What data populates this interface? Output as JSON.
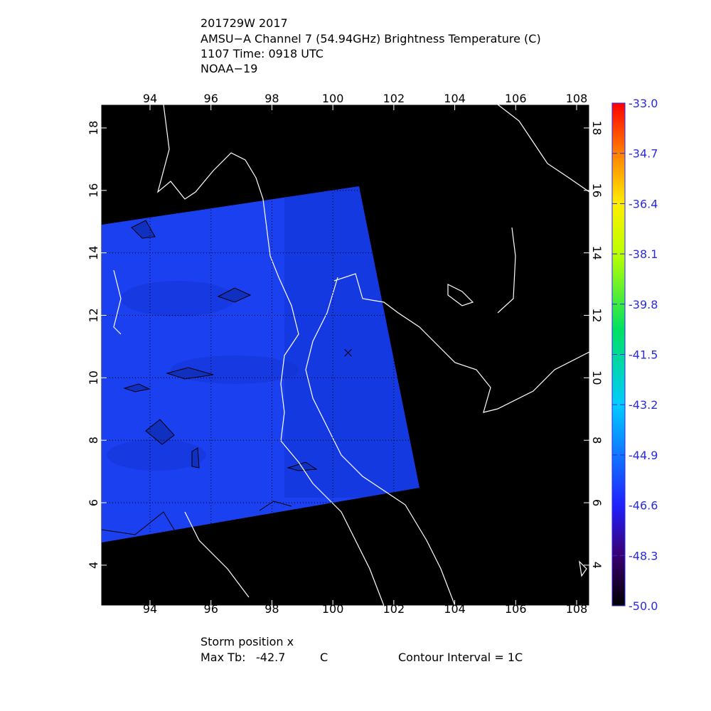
{
  "header": {
    "lines": [
      "201729W 2017",
      "AMSU−A Channel 7 (54.94GHz) Brightness Temperature (C)",
      "1107 Time: 0918 UTC",
      "NOAA−19"
    ]
  },
  "map": {
    "xlim": [
      92.39,
      108.42
    ],
    "ylim": [
      2.7,
      18.75
    ],
    "xticks": [
      94,
      96,
      98,
      100,
      102,
      104,
      106,
      108
    ],
    "yticks": [
      4,
      6,
      8,
      10,
      12,
      14,
      16,
      18
    ],
    "storm_position": {
      "lon": 100.5,
      "lat": 10.8
    }
  },
  "colorbar": {
    "lim": [
      -50.0,
      -33.0
    ],
    "ticks": [
      {
        "value": -33.0,
        "label": "-33.0"
      },
      {
        "value": -34.7,
        "label": "-34.7"
      },
      {
        "value": -36.4,
        "label": "-36.4"
      },
      {
        "value": -38.1,
        "label": "-38.1"
      },
      {
        "value": -39.8,
        "label": "-39.8"
      },
      {
        "value": -41.5,
        "label": "-41.5"
      },
      {
        "value": -43.2,
        "label": "-43.2"
      },
      {
        "value": -44.9,
        "label": "-44.9"
      },
      {
        "value": -46.6,
        "label": "-46.6"
      },
      {
        "value": -48.3,
        "label": "-48.3"
      },
      {
        "value": -50.0,
        "label": "-50.0"
      }
    ]
  },
  "footer": {
    "storm": "Storm position x",
    "max_tb_label": "Max Tb:",
    "max_tb": -42.7,
    "unit": "C",
    "contour": "Contour Interval = 1C"
  }
}
